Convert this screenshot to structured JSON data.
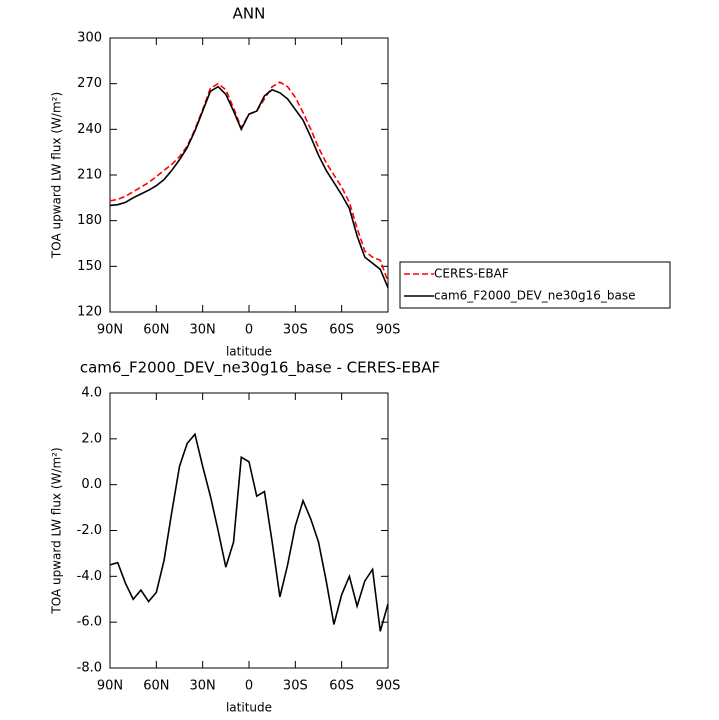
{
  "chart_data": [
    {
      "type": "line",
      "title": "ANN",
      "xlabel": "latitude",
      "ylabel": "TOA upward LW flux (W/m²)",
      "x": [
        90,
        85,
        80,
        75,
        70,
        65,
        60,
        55,
        50,
        45,
        40,
        35,
        30,
        25,
        20,
        15,
        10,
        5,
        0,
        -5,
        -10,
        -15,
        -20,
        -25,
        -30,
        -35,
        -40,
        -45,
        -50,
        -55,
        -60,
        -65,
        -70,
        -75,
        -80,
        -85,
        -90
      ],
      "series": [
        {
          "name": "CERES-EBAF",
          "color": "#ff0000",
          "dash": "dashed",
          "values": [
            193,
            194,
            196,
            199,
            202,
            205,
            209,
            213,
            217,
            222,
            229,
            240,
            253,
            267,
            270,
            266,
            254,
            241,
            250,
            252,
            260,
            268,
            271,
            268,
            261,
            251,
            240,
            228,
            218,
            210,
            202,
            192,
            175,
            160,
            156,
            154,
            140
          ]
        },
        {
          "name": "cam6_F2000_DEV_ne30g16_base",
          "color": "#000000",
          "dash": "solid",
          "values": [
            190,
            190.5,
            192,
            195,
            197.5,
            200,
            203,
            207,
            213,
            220,
            228,
            239,
            252,
            265,
            268,
            263,
            252,
            240,
            250,
            252,
            262,
            266,
            264,
            260,
            253,
            246,
            235,
            223,
            213,
            205,
            197,
            188,
            170,
            156,
            152,
            148,
            136
          ]
        }
      ],
      "xlim": [
        90,
        -90
      ],
      "xticks": [
        {
          "value": 90,
          "label": "90N"
        },
        {
          "value": 60,
          "label": "60N"
        },
        {
          "value": 30,
          "label": "30N"
        },
        0,
        {
          "value": -30,
          "label": "30S"
        },
        {
          "value": -60,
          "label": "60S"
        },
        {
          "value": -90,
          "label": "90S"
        }
      ],
      "ylim": [
        120,
        300
      ],
      "yticks": [
        120,
        150,
        180,
        210,
        240,
        270,
        300
      ],
      "legend": "right"
    },
    {
      "type": "line",
      "title": "cam6_F2000_DEV_ne30g16_base - CERES-EBAF",
      "xlabel": "latitude",
      "ylabel": "TOA upward LW flux (W/m²)",
      "x": [
        90,
        85,
        80,
        75,
        70,
        65,
        60,
        55,
        50,
        45,
        40,
        35,
        30,
        25,
        20,
        15,
        10,
        5,
        0,
        -5,
        -10,
        -15,
        -20,
        -25,
        -30,
        -35,
        -40,
        -45,
        -50,
        -55,
        -60,
        -65,
        -70,
        -75,
        -80,
        -85,
        -90
      ],
      "values": [
        -3.5,
        -3.4,
        -4.3,
        -5.0,
        -4.6,
        -5.1,
        -4.7,
        -3.3,
        -1.2,
        0.8,
        1.8,
        2.2,
        0.8,
        -0.5,
        -2.0,
        -3.6,
        -2.5,
        1.2,
        1.0,
        -0.5,
        -0.3,
        -2.5,
        -4.9,
        -3.5,
        -1.8,
        -0.7,
        -1.5,
        -2.5,
        -4.2,
        -6.1,
        -4.8,
        -4.0,
        -5.3,
        -4.2,
        -3.7,
        -6.4,
        -5.2
      ],
      "color": "#000000",
      "xlim": [
        90,
        -90
      ],
      "xticks": [
        {
          "value": 90,
          "label": "90N"
        },
        {
          "value": 60,
          "label": "60N"
        },
        {
          "value": 30,
          "label": "30N"
        },
        0,
        {
          "value": -30,
          "label": "30S"
        },
        {
          "value": -60,
          "label": "60S"
        },
        {
          "value": -90,
          "label": "90S"
        }
      ],
      "ylim": [
        -8,
        4
      ],
      "yticks": [
        {
          "value": -8,
          "label": "-8.0"
        },
        {
          "value": -6,
          "label": "-6.0"
        },
        {
          "value": -4,
          "label": "-4.0"
        },
        {
          "value": -2,
          "label": "-2.0"
        },
        {
          "value": 0,
          "label": "0.0"
        },
        {
          "value": 2,
          "label": "2.0"
        },
        {
          "value": 4,
          "label": "4.0"
        }
      ]
    }
  ]
}
